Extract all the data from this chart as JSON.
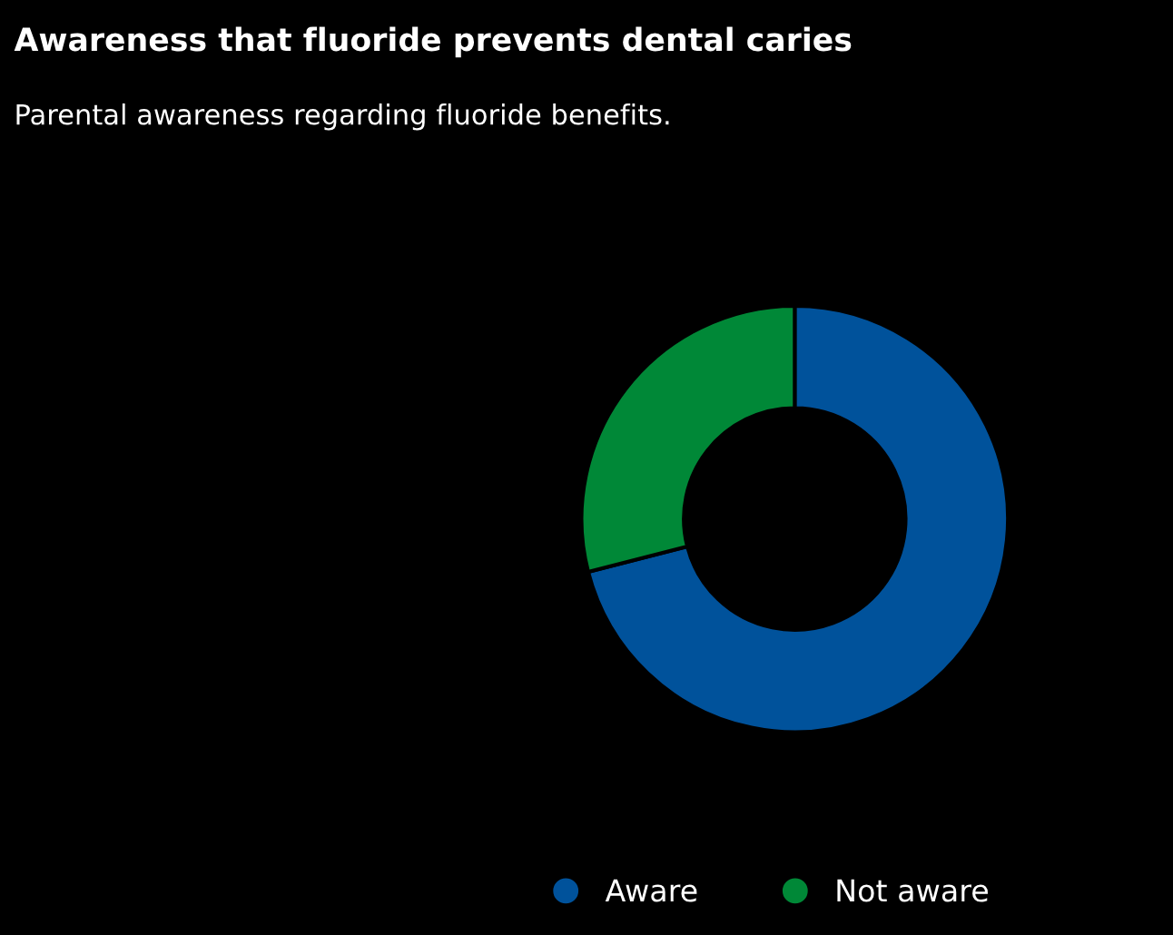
{
  "chart_data": {
    "type": "donut",
    "title": "Awareness that fluoride prevents dental caries",
    "subtitle": "Parental awareness regarding fluoride benefits.",
    "categories": [
      "Aware",
      "Not aware"
    ],
    "values": [
      71,
      29
    ],
    "colors": [
      "#00529b",
      "#008837"
    ],
    "legend": "bottom"
  }
}
